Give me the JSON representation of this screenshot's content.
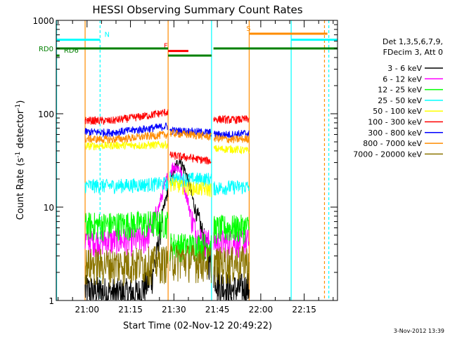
{
  "chart_data": {
    "type": "line",
    "title": "HESSI Observing Summary Count Rates",
    "xlabel": "Start Time (02-Nov-12 20:49:22)",
    "ylabel_main": "Count Rate (s",
    "ylabel_sup1": "-1",
    "ylabel_mid": " detector",
    "ylabel_sup2": "-1",
    "ylabel_end": ")",
    "yscale": "log",
    "xlim": [
      "20:49:22",
      "22:26:30"
    ],
    "ylim": [
      1,
      1000
    ],
    "x_ticks": [
      {
        "t": "21:00",
        "label": "21:00"
      },
      {
        "t": "21:15",
        "label": "21:15"
      },
      {
        "t": "21:30",
        "label": "21:30"
      },
      {
        "t": "21:45",
        "label": "21:45"
      },
      {
        "t": "22:00",
        "label": "22:00"
      },
      {
        "t": "22:15",
        "label": "22:15"
      }
    ],
    "y_ticks": [
      {
        "v": 1,
        "label": "1"
      },
      {
        "v": 10,
        "label": "10"
      },
      {
        "v": 100,
        "label": "100"
      },
      {
        "v": 1000,
        "label": "1000"
      }
    ],
    "legend_header": [
      "Det 1,3,5,6,7,9,",
      "FDecim 3, Att 0"
    ],
    "legend_position": "right",
    "timestamp": "3-Nov-2012 13:39",
    "gaps": [
      [
        "21:28:00",
        "21:28:30"
      ],
      [
        "21:43:00",
        "21:43:40"
      ]
    ],
    "data_start": "20:59:20",
    "data_end": "21:56:00",
    "series": [
      {
        "name": "3 - 6 keV",
        "color": "#000000",
        "points": [
          [
            "20:59:20",
            1.3
          ],
          [
            "21:10:00",
            1.2
          ],
          [
            "21:18:00",
            1.2
          ],
          [
            "21:22:00",
            1.8
          ],
          [
            "21:24:00",
            3
          ],
          [
            "21:26:00",
            8
          ],
          [
            "21:28:00",
            16
          ],
          [
            "21:30:00",
            25
          ],
          [
            "21:32:00",
            32
          ],
          [
            "21:34:00",
            24
          ],
          [
            "21:36:00",
            14
          ],
          [
            "21:38:00",
            8
          ],
          [
            "21:40:00",
            5
          ],
          [
            "21:42:00",
            3
          ],
          [
            "21:43:40",
            2.2
          ],
          [
            "21:46:00",
            1.5
          ],
          [
            "21:50:00",
            1.3
          ],
          [
            "21:56:00",
            1.4
          ]
        ]
      },
      {
        "name": "6 - 12 keV",
        "color": "#ff00ff",
        "points": [
          [
            "20:59:20",
            4.5
          ],
          [
            "21:10:00",
            4.4
          ],
          [
            "21:20:00",
            4.6
          ],
          [
            "21:24:00",
            8
          ],
          [
            "21:26:00",
            14
          ],
          [
            "21:28:00",
            22
          ],
          [
            "21:30:00",
            28
          ],
          [
            "21:32:00",
            26
          ],
          [
            "21:34:00",
            15
          ],
          [
            "21:36:00",
            8
          ],
          [
            "21:38:00",
            5
          ],
          [
            "21:40:00",
            4.5
          ],
          [
            "21:43:00",
            4.2
          ],
          [
            "21:43:40",
            4.2
          ],
          [
            "21:50:00",
            4.3
          ],
          [
            "21:56:00",
            4.4
          ]
        ]
      },
      {
        "name": "12 - 25 keV",
        "color": "#00ff00",
        "points": [
          [
            "20:59:20",
            6.5
          ],
          [
            "21:10:00",
            6.6
          ],
          [
            "21:20:00",
            6.8
          ],
          [
            "21:28:00",
            6.9
          ],
          [
            "21:28:30",
            4.0
          ],
          [
            "21:35:00",
            3.9
          ],
          [
            "21:43:00",
            4.0
          ],
          [
            "21:43:40",
            6.0
          ],
          [
            "21:50:00",
            6.1
          ],
          [
            "21:56:00",
            6.2
          ]
        ]
      },
      {
        "name": "25 - 50 keV",
        "color": "#00ffff",
        "points": [
          [
            "20:59:20",
            17
          ],
          [
            "21:10:00",
            17
          ],
          [
            "21:20:00",
            17.5
          ],
          [
            "21:28:00",
            18
          ],
          [
            "21:28:30",
            20
          ],
          [
            "21:35:00",
            20
          ],
          [
            "21:43:00",
            20
          ],
          [
            "21:43:40",
            16
          ],
          [
            "21:50:00",
            16.5
          ],
          [
            "21:56:00",
            16.5
          ]
        ]
      },
      {
        "name": "50 - 100 keV",
        "color": "#ffff00",
        "points": [
          [
            "20:59:20",
            45
          ],
          [
            "21:10:00",
            46
          ],
          [
            "21:20:00",
            46
          ],
          [
            "21:28:00",
            47
          ],
          [
            "21:28:30",
            18
          ],
          [
            "21:35:00",
            16
          ],
          [
            "21:43:00",
            15.5
          ],
          [
            "21:43:40",
            42
          ],
          [
            "21:50:00",
            42
          ],
          [
            "21:56:00",
            40
          ]
        ]
      },
      {
        "name": "100 - 300 keV",
        "color": "#ff0000",
        "points": [
          [
            "20:59:20",
            85
          ],
          [
            "21:08:00",
            84
          ],
          [
            "21:15:00",
            90
          ],
          [
            "21:22:00",
            97
          ],
          [
            "21:28:00",
            105
          ],
          [
            "21:28:30",
            36
          ],
          [
            "21:35:00",
            34
          ],
          [
            "21:40:00",
            32
          ],
          [
            "21:43:00",
            31
          ],
          [
            "21:43:40",
            88
          ],
          [
            "21:50:00",
            86
          ],
          [
            "21:56:00",
            88
          ]
        ]
      },
      {
        "name": "300 - 800 keV",
        "color": "#0000ff",
        "points": [
          [
            "20:59:20",
            64
          ],
          [
            "21:08:00",
            63
          ],
          [
            "21:15:00",
            66
          ],
          [
            "21:22:00",
            70
          ],
          [
            "21:28:00",
            74
          ],
          [
            "21:28:30",
            66
          ],
          [
            "21:35:00",
            65
          ],
          [
            "21:43:00",
            63
          ],
          [
            "21:43:40",
            60
          ],
          [
            "21:50:00",
            60
          ],
          [
            "21:56:00",
            62
          ]
        ]
      },
      {
        "name": "800 - 7000 keV",
        "color": "#ff8c00",
        "points": [
          [
            "20:59:20",
            54
          ],
          [
            "21:08:00",
            53
          ],
          [
            "21:15:00",
            55
          ],
          [
            "21:22:00",
            58
          ],
          [
            "21:28:00",
            60
          ],
          [
            "21:28:30",
            62
          ],
          [
            "21:35:00",
            60
          ],
          [
            "21:43:00",
            57
          ],
          [
            "21:43:40",
            55
          ],
          [
            "21:50:00",
            53
          ],
          [
            "21:56:00",
            54
          ]
        ]
      },
      {
        "name": "7000 - 20000 keV",
        "color": "#8b7500",
        "points": [
          [
            "20:59:20",
            2.5
          ],
          [
            "21:10:00",
            2.5
          ],
          [
            "21:20:00",
            2.6
          ],
          [
            "21:28:00",
            2.7
          ],
          [
            "21:28:30",
            2.8
          ],
          [
            "21:35:00",
            2.8
          ],
          [
            "21:43:00",
            2.7
          ],
          [
            "21:43:40",
            2.6
          ],
          [
            "21:50:00",
            2.6
          ],
          [
            "21:56:00",
            2.7
          ]
        ]
      }
    ],
    "flags": [
      {
        "label": "N",
        "color": "#00ffff",
        "y": 620,
        "segments": [
          [
            "20:49:22",
            "21:04:30"
          ],
          [
            "22:10:30",
            "22:26:30"
          ]
        ],
        "label_at": "21:06:00"
      },
      {
        "label": "S",
        "color": "#ff8c00",
        "y": 720,
        "segments": [
          [
            "21:56:00",
            "22:23:00"
          ]
        ],
        "label_at": "21:55:00"
      },
      {
        "label": "F",
        "color": "#ff0000",
        "y": 470,
        "segments": [
          [
            "21:28:00",
            "21:35:00"
          ]
        ],
        "label_at": "21:26:30"
      },
      {
        "label": "RD0",
        "color": "#008000",
        "y": 500,
        "segments": [
          [
            "20:49:22",
            "21:28:00"
          ],
          [
            "21:43:40",
            "22:26:30"
          ]
        ],
        "label_at": ""
      },
      {
        "label": "RD6",
        "color": "#008000",
        "y": 420,
        "segments": [
          [
            "20:49:22",
            "20:50:30"
          ],
          [
            "21:28:00",
            "21:43:00"
          ]
        ],
        "label_at": "20:52:00"
      }
    ],
    "vertical_lines": [
      {
        "t": "20:49:30",
        "color": "#00ffff",
        "style": "solid"
      },
      {
        "t": "20:59:20",
        "color": "#ff8c00",
        "style": "solid"
      },
      {
        "t": "21:04:30",
        "color": "#00ffff",
        "style": "dashed"
      },
      {
        "t": "21:28:00",
        "color": "#ff8c00",
        "style": "solid"
      },
      {
        "t": "21:43:00",
        "color": "#00ffff",
        "style": "solid"
      },
      {
        "t": "21:56:00",
        "color": "#ff8c00",
        "style": "solid"
      },
      {
        "t": "22:10:30",
        "color": "#00ffff",
        "style": "solid"
      },
      {
        "t": "22:22:00",
        "color": "#ff8c00",
        "style": "dashed"
      },
      {
        "t": "22:23:30",
        "color": "#00ffff",
        "style": "dashed"
      }
    ]
  }
}
